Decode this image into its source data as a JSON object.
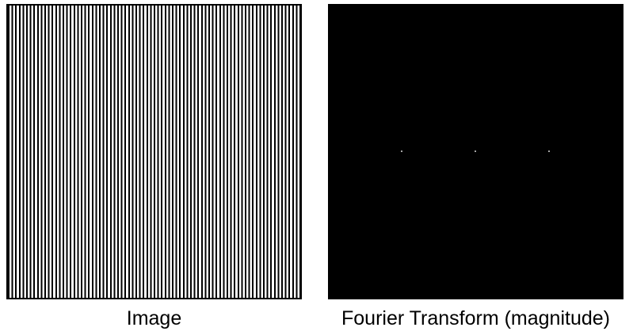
{
  "panels": {
    "image": {
      "caption": "Image",
      "stripe_color": "#000000",
      "background_color": "#ffffff"
    },
    "fourier": {
      "caption": "Fourier Transform (magnitude)",
      "background_color": "#000000",
      "peak_color": "#d8d8d8",
      "peak_count": 3
    }
  }
}
